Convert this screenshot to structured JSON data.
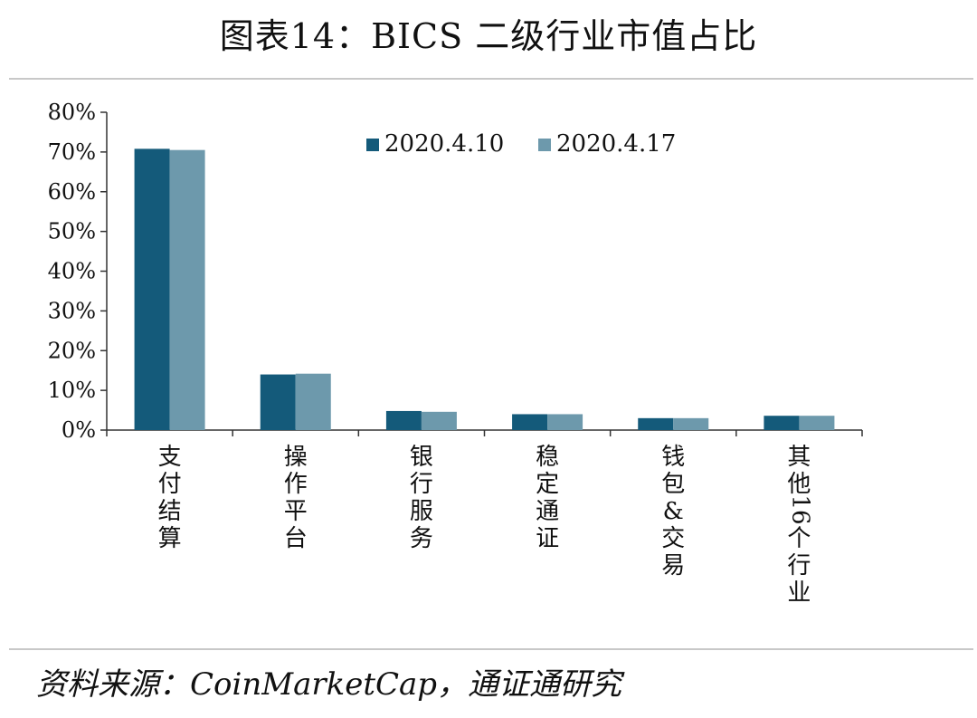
{
  "title": "图表14：BICS 二级行业市值占比",
  "source": "资料来源：CoinMarketCap，通证通研究",
  "colors": {
    "series_1": "#145a7a",
    "series_2": "#6d99ac",
    "axis": "#333333"
  },
  "chart_data": {
    "type": "bar",
    "title": "",
    "xlabel": "",
    "ylabel": "",
    "categories": [
      "支付结算",
      "操作平台",
      "银行服务",
      "稳定通证",
      "钱包&交易",
      "其他16个行业"
    ],
    "category_lines": [
      [
        "支",
        "付",
        "结",
        "算"
      ],
      [
        "操",
        "作",
        "平",
        "台"
      ],
      [
        "银",
        "行",
        "服",
        "务"
      ],
      [
        "稳",
        "定",
        "通",
        "证"
      ],
      [
        "钱",
        "包",
        "&",
        "交",
        "易"
      ],
      [
        "其",
        "他",
        "16",
        "个",
        "行",
        "业"
      ]
    ],
    "series": [
      {
        "name": "2020.4.10",
        "values": [
          70.8,
          14.0,
          4.8,
          4.0,
          3.0,
          3.6
        ]
      },
      {
        "name": "2020.4.17",
        "values": [
          70.5,
          14.2,
          4.6,
          4.0,
          3.0,
          3.6
        ]
      }
    ],
    "ylim": [
      0,
      80
    ],
    "yticks": [
      "0%",
      "10%",
      "20%",
      "30%",
      "40%",
      "50%",
      "60%",
      "70%",
      "80%"
    ],
    "grid": false,
    "legend_position": "top-center"
  }
}
